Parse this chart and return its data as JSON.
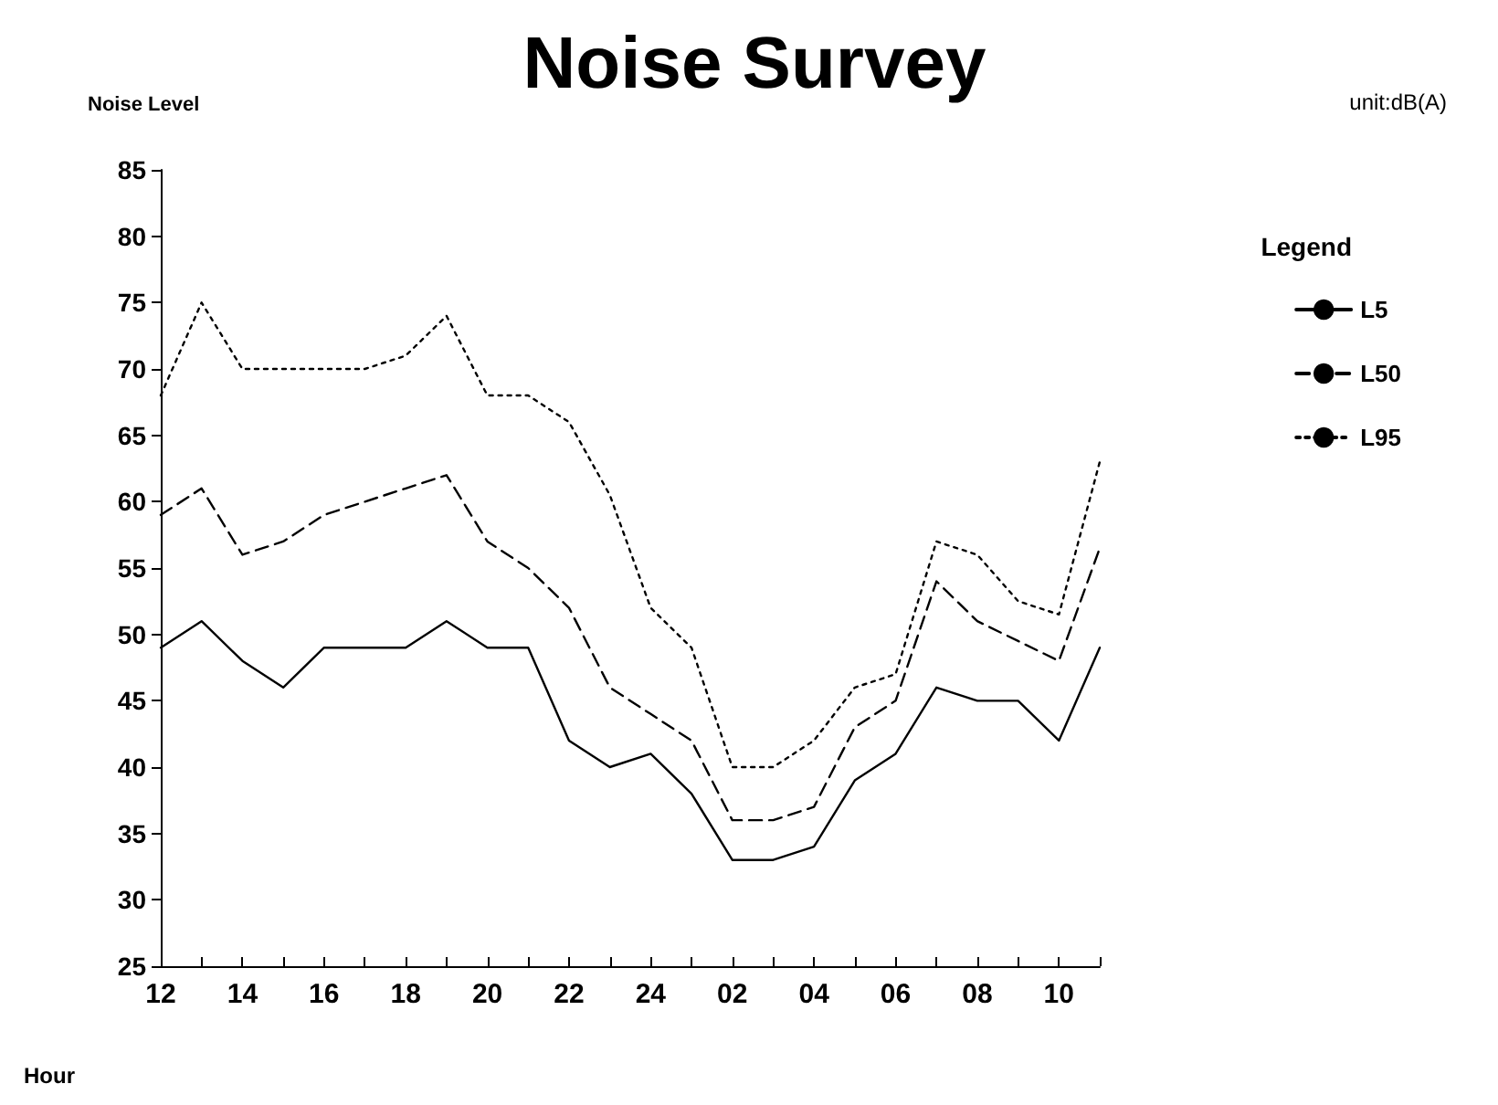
{
  "chart_data": {
    "type": "line",
    "title": "Noise Survey",
    "ylabel": "Noise Level",
    "xlabel": "Hour",
    "annotations": [
      "unit:dB(A)"
    ],
    "legend_title": "Legend",
    "legend": "right",
    "grid": false,
    "marker": "none",
    "categories": [
      "12",
      null,
      "14",
      null,
      "16",
      null,
      "18",
      null,
      "20",
      null,
      "22",
      null,
      "24",
      null,
      "02",
      null,
      "04",
      null,
      "06",
      null,
      "08",
      null,
      "10",
      null
    ],
    "ylim": [
      25,
      85
    ],
    "yticks": [
      25,
      30,
      35,
      40,
      45,
      50,
      55,
      60,
      65,
      70,
      75,
      80,
      85
    ],
    "series": [
      {
        "name": "L5",
        "color": "#000000",
        "line_style": "solid",
        "values": [
          49,
          51,
          48,
          46,
          49,
          49,
          49,
          51,
          49,
          49,
          42,
          40,
          41,
          38,
          33,
          33,
          34,
          39,
          41,
          46,
          45,
          45,
          42,
          49
        ]
      },
      {
        "name": "L50",
        "color": "#000000",
        "line_style": "dashed",
        "values": [
          59,
          61,
          56,
          57,
          59,
          60,
          61,
          62,
          57,
          55,
          52,
          46,
          44,
          42,
          36,
          36,
          37,
          43,
          45,
          54,
          51,
          49.5,
          48,
          56.5
        ]
      },
      {
        "name": "L95",
        "color": "#000000",
        "line_style": "dotted",
        "values": [
          68,
          75,
          70,
          70,
          70,
          70,
          71,
          74,
          68,
          68,
          66,
          60.5,
          52,
          49,
          40,
          40,
          42,
          46,
          47,
          57,
          56,
          52.5,
          51.5,
          63
        ]
      }
    ]
  }
}
